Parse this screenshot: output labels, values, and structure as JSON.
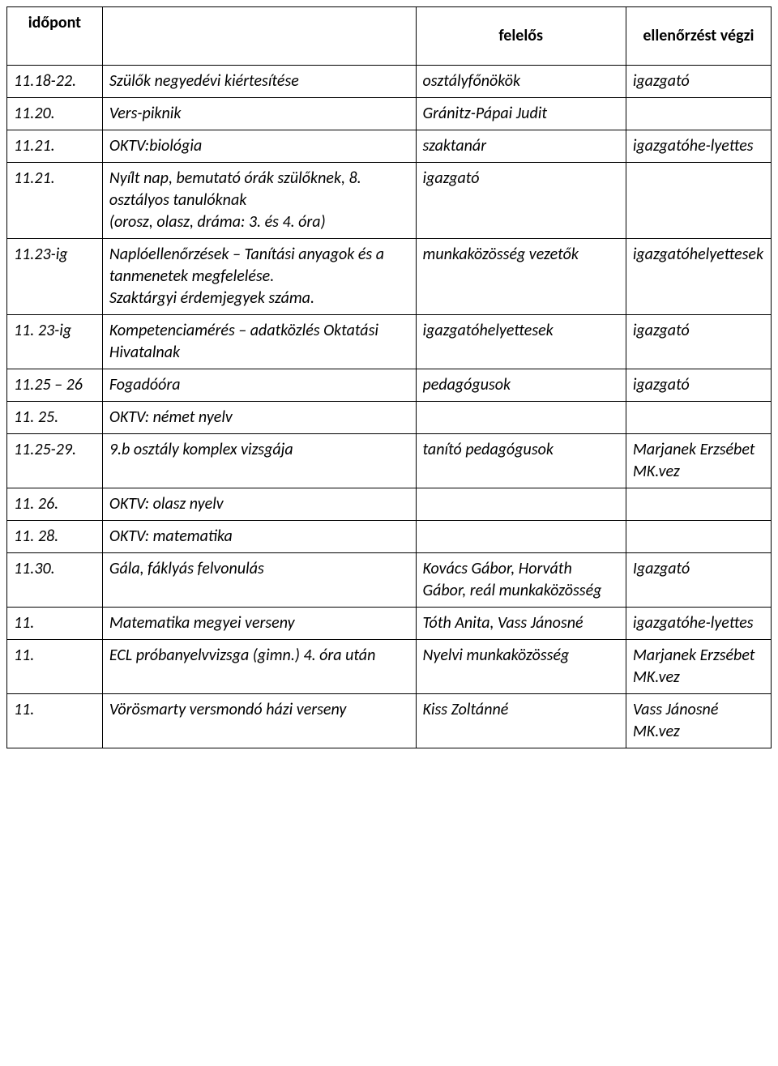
{
  "header": {
    "time": "időpont",
    "desc": "",
    "resp": "felelős",
    "check": "ellenőrzést végzi"
  },
  "rows": [
    {
      "time": "11.18-22.",
      "desc": "Szülők negyedévi kiértesítése",
      "resp": "osztályfőnökök",
      "check": "igazgató"
    },
    {
      "time": "11.20.",
      "desc": "Vers-piknik",
      "resp": "Gránitz-Pápai Judit",
      "check": ""
    },
    {
      "time": "11.21.",
      "desc": "OKTV:biológia",
      "resp": "szaktanár",
      "check": "igazgatóhe-lyettes"
    },
    {
      "time": "11.21.",
      "desc": "Nyílt nap, bemutató órák szülőknek, 8. osztályos tanulóknak\n(orosz, olasz, dráma: 3. és 4. óra)",
      "resp": "igazgató",
      "check": ""
    },
    {
      "time": "11.23-ig",
      "desc": "Naplóellenőrzések – Tanítási anyagok és a tanmenetek megfelelése.\n Szaktárgyi érdemjegyek száma.",
      "resp": "munkaközösség vezetők",
      "check": "igazgatóhelyettesek"
    },
    {
      "time": "11. 23-ig",
      "desc": "Kompetenciamérés – adatközlés Oktatási Hivatalnak",
      "resp": "igazgatóhelyettesek",
      "check": "igazgató"
    },
    {
      "time": "11.25 – 26",
      "desc": "Fogadóóra",
      "resp": "pedagógusok",
      "check": "igazgató"
    },
    {
      "time": "11. 25.",
      "desc": "OKTV: német nyelv",
      "resp": "",
      "check": ""
    },
    {
      "time": "11.25-29.",
      "desc": "9.b osztály komplex vizsgája",
      "resp": "tanító pedagógusok",
      "check": "Marjanek Erzsébet MK.vez"
    },
    {
      "time": "11. 26.",
      "desc": "OKTV: olasz nyelv",
      "resp": "",
      "check": ""
    },
    {
      "time": "11. 28.",
      "desc": "OKTV: matematika",
      "resp": "",
      "check": ""
    },
    {
      "time": "11.30.",
      "desc": "Gála, fáklyás felvonulás",
      "resp": "Kovács Gábor, Horváth Gábor, reál munkaközösség",
      "check": "Igazgató"
    },
    {
      "time": "11.",
      "desc": "Matematika megyei verseny",
      "resp": "Tóth Anita, Vass Jánosné",
      "check": " igazgatóhe-lyettes"
    },
    {
      "time": "11.",
      "desc": "ECL próbanyelvvizsga (gimn.) 4. óra után",
      "resp": "Nyelvi munkaközösség",
      "check": "Marjanek Erzsébet MK.vez"
    },
    {
      "time": "11.",
      "desc": "Vörösmarty versmondó házi verseny",
      "resp": "Kiss Zoltánné",
      "check": "Vass Jánosné MK.vez"
    }
  ],
  "style": {
    "font_family": "Calibri",
    "font_size_pt": 15,
    "border_color": "#000000",
    "background_color": "#ffffff",
    "text_color": "#000000",
    "col_widths_pct": [
      12.5,
      41,
      27.5,
      19
    ],
    "body_italic": true,
    "header_bold": true
  }
}
